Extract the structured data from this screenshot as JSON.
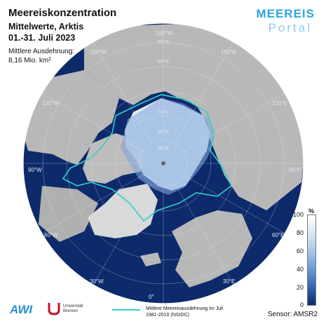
{
  "header": {
    "title": "Meereiskonzentration",
    "subtitle": "Mittelwerte, Arktis",
    "period": "01.-31. Juli 2023",
    "extent_label": "Mittlere Ausdehnung:",
    "extent_value": "8,16 Mio. km²"
  },
  "brand": {
    "line1": "MEEREIS",
    "line2": "Portal"
  },
  "map": {
    "projection": "north-polar-stereographic",
    "longitude_labels": [
      "180°W",
      "150°W",
      "120°W",
      "90°W",
      "60°W",
      "30°W",
      "0°",
      "30°E",
      "60°E",
      "90°E",
      "120°E",
      "150°E"
    ],
    "latitude_labels": [
      "55°N",
      "60°N",
      "75°N",
      "80°N",
      "85°N"
    ],
    "colors": {
      "ocean": "#0d2a6b",
      "land": "#b5b5b5",
      "ice": "#f4f8fd",
      "median_line": "#2fd0c8"
    }
  },
  "colorbar": {
    "unit": "%",
    "ticks": [
      "100",
      "80",
      "60",
      "40",
      "20",
      "0"
    ]
  },
  "legend": {
    "line1": "Mittlere Meereisausdehnung im Juli",
    "line2": "1981-2010 (NSIDC)"
  },
  "footer": {
    "sensor": "Sensor: AMSR2",
    "awi_logo": "AWI",
    "uni_logo_line1": "Universität",
    "uni_logo_line2": "Bremen"
  }
}
